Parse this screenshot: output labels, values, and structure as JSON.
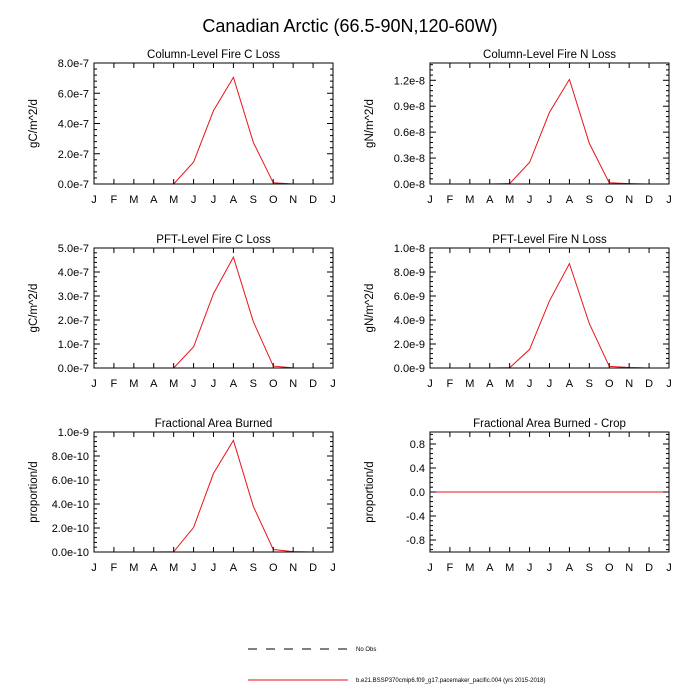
{
  "figure_title": "Canadian Arctic (66.5-90N,120-60W)",
  "colors": {
    "series_line": "#e8141b",
    "axis": "#000000",
    "obs_line": "#000000"
  },
  "legend": {
    "obs_label": "No Obs",
    "model_label": "b.e21.BSSP370cmip6.f09_g17.pacemaker_pacific.004 (yrs 2015-2018)"
  },
  "chart_data": [
    {
      "type": "line",
      "title": "Column-Level Fire C Loss",
      "ylabel": "gC/m^2/d",
      "categories": [
        "J",
        "F",
        "M",
        "A",
        "M",
        "J",
        "J",
        "A",
        "S",
        "O",
        "N",
        "D",
        "J"
      ],
      "ylim": [
        0,
        8e-07
      ],
      "yticks": [
        0,
        2e-07,
        4e-07,
        6e-07,
        8e-07
      ],
      "ytick_labels": [
        "0.0e-7",
        "2.0e-7",
        "4.0e-7",
        "6.0e-7",
        "8.0e-7"
      ],
      "values": [
        0,
        0,
        0,
        0,
        2e-10,
        1.45e-07,
        4.85e-07,
        7.05e-07,
        2.75e-07,
        8e-09,
        3e-10,
        0,
        0
      ]
    },
    {
      "type": "line",
      "title": "Column-Level Fire N Loss",
      "ylabel": "gN/m^2/d",
      "categories": [
        "J",
        "F",
        "M",
        "A",
        "M",
        "J",
        "J",
        "A",
        "S",
        "O",
        "N",
        "D",
        "J"
      ],
      "ylim": [
        0,
        1.4e-08
      ],
      "yticks": [
        0,
        3e-09,
        6e-09,
        9e-09,
        1.2e-08
      ],
      "ytick_labels": [
        "0.0e-8",
        "0.3e-8",
        "0.6e-8",
        "0.9e-8",
        "1.2e-8"
      ],
      "values": [
        0,
        0,
        0,
        0,
        4e-11,
        2.5e-09,
        8.3e-09,
        1.21e-08,
        4.7e-09,
        1.4e-10,
        5e-11,
        0,
        0
      ]
    },
    {
      "type": "line",
      "title": "PFT-Level Fire C Loss",
      "ylabel": "gC/m^2/d",
      "categories": [
        "J",
        "F",
        "M",
        "A",
        "M",
        "J",
        "J",
        "A",
        "S",
        "O",
        "N",
        "D",
        "J"
      ],
      "ylim": [
        0,
        5e-07
      ],
      "yticks": [
        0,
        1e-07,
        2e-07,
        3e-07,
        4e-07,
        5e-07
      ],
      "ytick_labels": [
        "0.0e-7",
        "1.0e-7",
        "2.0e-7",
        "3.0e-7",
        "4.0e-7",
        "5.0e-7"
      ],
      "values": [
        0,
        0,
        0,
        0,
        2e-10,
        8.8e-08,
        3.1e-07,
        4.62e-07,
        1.93e-07,
        8e-09,
        3e-10,
        0,
        0
      ]
    },
    {
      "type": "line",
      "title": "PFT-Level Fire N Loss",
      "ylabel": "gN/m^2/d",
      "categories": [
        "J",
        "F",
        "M",
        "A",
        "M",
        "J",
        "J",
        "A",
        "S",
        "O",
        "N",
        "D",
        "J"
      ],
      "ylim": [
        0,
        1e-08
      ],
      "yticks": [
        0,
        2e-09,
        4e-09,
        6e-09,
        8e-09,
        1e-08
      ],
      "ytick_labels": [
        "0.0e-9",
        "2.0e-9",
        "4.0e-9",
        "6.0e-9",
        "8.0e-9",
        "1.0e-8"
      ],
      "values": [
        0,
        0,
        0,
        0,
        2e-11,
        1.55e-09,
        5.6e-09,
        8.7e-09,
        3.7e-09,
        1.4e-10,
        4e-11,
        0,
        0
      ]
    },
    {
      "type": "line",
      "title": "Fractional Area Burned",
      "ylabel": "proportion/d",
      "categories": [
        "J",
        "F",
        "M",
        "A",
        "M",
        "J",
        "J",
        "A",
        "S",
        "O",
        "N",
        "D",
        "J"
      ],
      "ylim": [
        0,
        1e-09
      ],
      "yticks": [
        0,
        2e-10,
        4e-10,
        6e-10,
        8e-10,
        1e-09
      ],
      "ytick_labels": [
        "0.0e-10",
        "2.0e-10",
        "4.0e-10",
        "6.0e-10",
        "8.0e-10",
        "1.0e-9"
      ],
      "values": [
        0,
        0,
        0,
        0,
        2e-12,
        2.05e-10,
        6.55e-10,
        9.3e-10,
        3.8e-10,
        2.1e-11,
        3e-12,
        0,
        0
      ]
    },
    {
      "type": "line",
      "title": "Fractional Area Burned - Crop",
      "ylabel": "proportion/d",
      "categories": [
        "J",
        "F",
        "M",
        "A",
        "M",
        "J",
        "J",
        "A",
        "S",
        "O",
        "N",
        "D",
        "J"
      ],
      "ylim": [
        -1,
        1
      ],
      "yticks": [
        -0.8,
        -0.4,
        0,
        0.4,
        0.8
      ],
      "ytick_labels": [
        "-0.8",
        "-0.4",
        "0.0",
        "0.4",
        "0.8"
      ],
      "values": [
        0,
        0,
        0,
        0,
        0,
        0,
        0,
        0,
        0,
        0,
        0,
        0,
        0
      ]
    }
  ]
}
